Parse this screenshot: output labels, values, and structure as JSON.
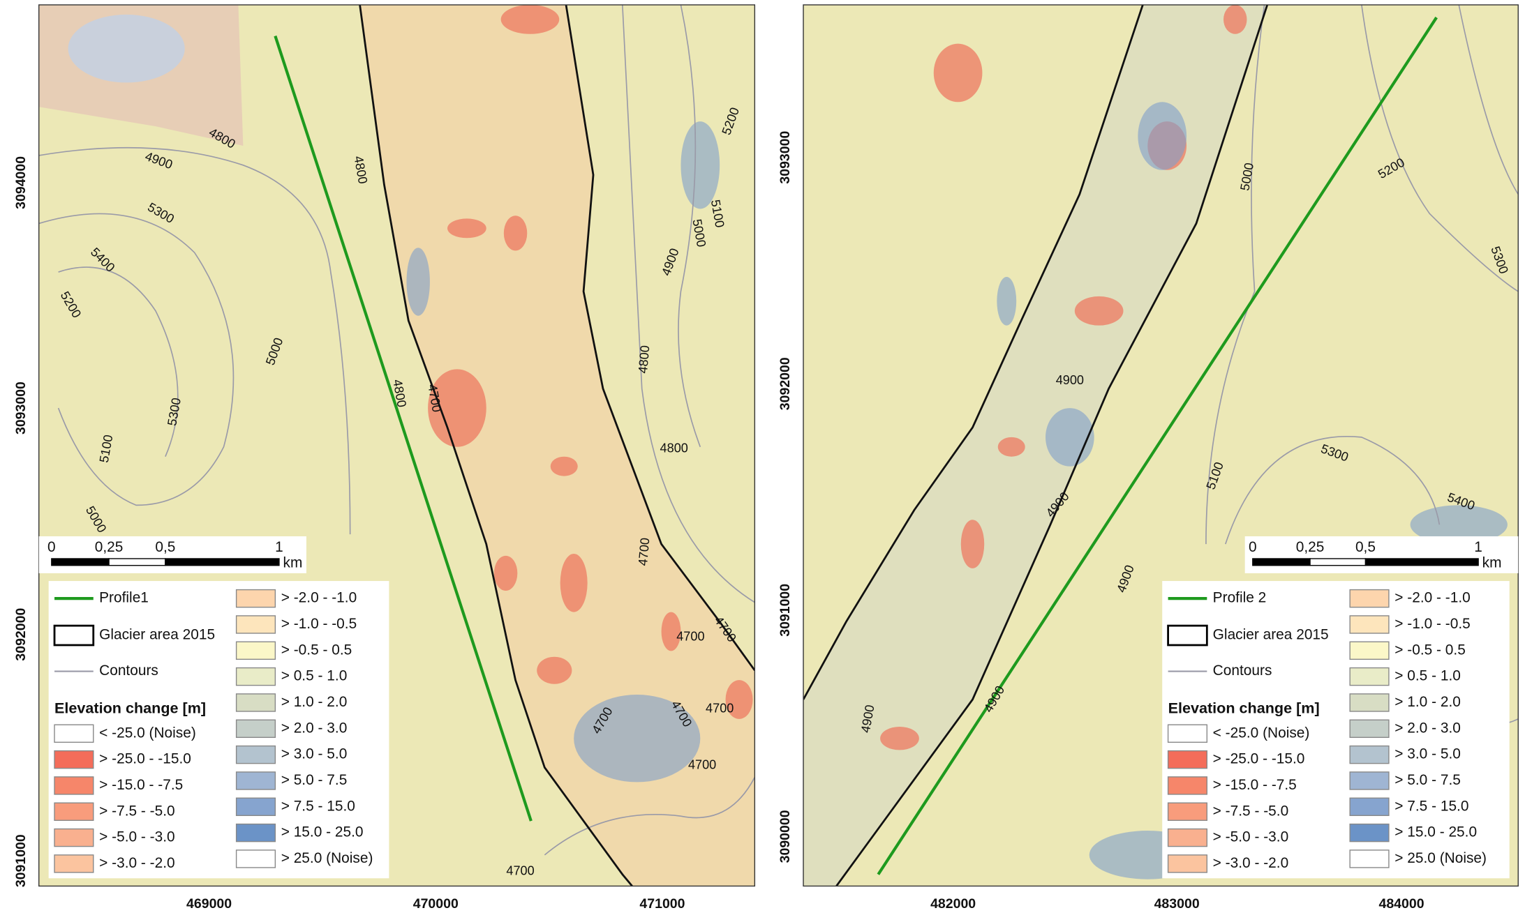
{
  "panels": [
    {
      "xticks": [
        "469000",
        "470000",
        "471000"
      ],
      "yticks": [
        "3094000",
        "3093000",
        "3092000",
        "3091000"
      ],
      "scale_bar": {
        "ticks": [
          "0",
          "0,25",
          "0,5",
          "1"
        ],
        "unit": "km"
      },
      "contour_labels": [
        "4800",
        "4900",
        "5300",
        "5400",
        "5200",
        "5000",
        "5300",
        "5100",
        "5000",
        "4800",
        "4800",
        "4700",
        "4800",
        "4700",
        "4800",
        "4700",
        "4700",
        "4700",
        "4700",
        "4700",
        "4700",
        "4700",
        "5200",
        "5100",
        "5000",
        "4900"
      ],
      "legend": {
        "profile": "Profile1",
        "glacier": "Glacier area 2015",
        "contours": "Contours",
        "title": "Elevation change [m]",
        "classes": [
          {
            "label": "< -25.0 (Noise)",
            "color": "#ffffff"
          },
          {
            "label": "> -25.0 - -15.0",
            "color": "#f46d5a"
          },
          {
            "label": "> -15.0 - -7.5",
            "color": "#f6866a"
          },
          {
            "label": "> -7.5 - -5.0",
            "color": "#f89c7c"
          },
          {
            "label": "> -5.0 - -3.0",
            "color": "#f9b08f"
          },
          {
            "label": "> -3.0 - -2.0",
            "color": "#fbc49f"
          },
          {
            "label": "> -2.0 - -1.0",
            "color": "#fdd5ad"
          },
          {
            "label": "> -1.0 - -0.5",
            "color": "#fde5bc"
          },
          {
            "label": "> -0.5 - 0.5",
            "color": "#fbf7c8"
          },
          {
            "label": "> 0.5 - 1.0",
            "color": "#e9ecc8"
          },
          {
            "label": "> 1.0 - 2.0",
            "color": "#d8ddc4"
          },
          {
            "label": "> 2.0 - 3.0",
            "color": "#c5cfc9"
          },
          {
            "label": "> 3.0 - 5.0",
            "color": "#b3c3cf"
          },
          {
            "label": "> 5.0 - 7.5",
            "color": "#9fb5d3"
          },
          {
            "label": "> 7.5 - 15.0",
            "color": "#86a4cf"
          },
          {
            "label": "> 15.0 - 25.0",
            "color": "#6b93c7"
          },
          {
            "label": "> 25.0 (Noise)",
            "color": "#ffffff"
          }
        ]
      }
    },
    {
      "xticks": [
        "482000",
        "483000",
        "484000"
      ],
      "yticks": [
        "3093000",
        "3092000",
        "3091000",
        "3090000"
      ],
      "scale_bar": {
        "ticks": [
          "0",
          "0,25",
          "0,5",
          "1"
        ],
        "unit": "km"
      },
      "contour_labels": [
        "5000",
        "5200",
        "5300",
        "4900",
        "5300",
        "5100",
        "4900",
        "5400",
        "4900",
        "4900",
        "4900"
      ],
      "legend": {
        "profile": "Profile 2",
        "glacier": "Glacier area 2015",
        "contours": "Contours",
        "title": "Elevation change [m]",
        "classes": [
          {
            "label": "< -25.0 (Noise)",
            "color": "#ffffff"
          },
          {
            "label": "> -25.0 - -15.0",
            "color": "#f46d5a"
          },
          {
            "label": "> -15.0 - -7.5",
            "color": "#f6866a"
          },
          {
            "label": "> -7.5 - -5.0",
            "color": "#f89c7c"
          },
          {
            "label": "> -5.0 - -3.0",
            "color": "#f9b08f"
          },
          {
            "label": "> -3.0 - -2.0",
            "color": "#fbc49f"
          },
          {
            "label": "> -2.0 - -1.0",
            "color": "#fdd5ad"
          },
          {
            "label": "> -1.0 - -0.5",
            "color": "#fde5bc"
          },
          {
            "label": "> -0.5 - 0.5",
            "color": "#fbf7c8"
          },
          {
            "label": "> 0.5 - 1.0",
            "color": "#e9ecc8"
          },
          {
            "label": "> 1.0 - 2.0",
            "color": "#d8ddc4"
          },
          {
            "label": "> 2.0 - 3.0",
            "color": "#c5cfc9"
          },
          {
            "label": "> 3.0 - 5.0",
            "color": "#b3c3cf"
          },
          {
            "label": "> 5.0 - 7.5",
            "color": "#9fb5d3"
          },
          {
            "label": "> 7.5 - 15.0",
            "color": "#86a4cf"
          },
          {
            "label": "> 15.0 - 25.0",
            "color": "#6b93c7"
          },
          {
            "label": "> 25.0 (Noise)",
            "color": "#ffffff"
          }
        ]
      }
    }
  ]
}
